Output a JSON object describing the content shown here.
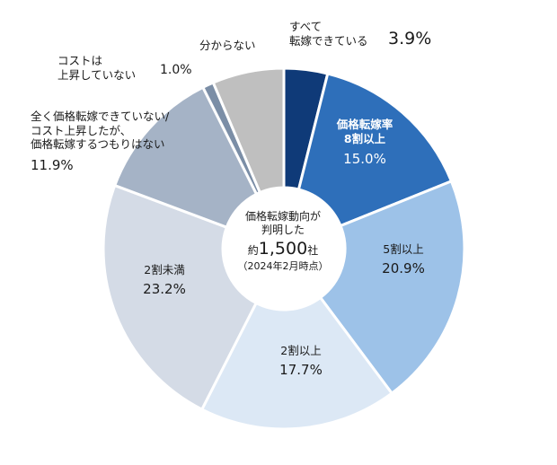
{
  "chart_data": {
    "type": "pie",
    "center_text": {
      "line1": "価格転嫁動向が",
      "line2": "判明した",
      "count_prefix": "約",
      "count": "1,500",
      "count_suffix": "社",
      "note": "（2024年2月時点）"
    },
    "slices": [
      {
        "label": [
          "すべて",
          "転嫁できている"
        ],
        "value": 3.9,
        "value_text": "3.9%",
        "color": "#0f3a78"
      },
      {
        "label": [
          "価格転嫁率",
          "8割以上"
        ],
        "value": 15.0,
        "value_text": "15.0%",
        "color": "#2e6fba"
      },
      {
        "label": [
          "5割以上"
        ],
        "value": 20.9,
        "value_text": "20.9%",
        "color": "#9dc2e8"
      },
      {
        "label": [
          "2割以上"
        ],
        "value": 17.7,
        "value_text": "17.7%",
        "color": "#dce8f5"
      },
      {
        "label": [
          "2割未満"
        ],
        "value": 23.2,
        "value_text": "23.2%",
        "color": "#d4dbe6"
      },
      {
        "label": [
          "全く価格転嫁できていない/",
          "コスト上昇したが、",
          "価格転嫁するつもりはない"
        ],
        "value": 11.9,
        "value_text": "11.9%",
        "color": "#a5b3c6"
      },
      {
        "label": [
          "コストは",
          "上昇していない"
        ],
        "value": 1.0,
        "value_text": "1.0%",
        "color": "#7b8ea6"
      },
      {
        "label": [
          "分からない"
        ],
        "value": 6.4,
        "value_text": "",
        "color": "#bfbfbf"
      }
    ]
  }
}
